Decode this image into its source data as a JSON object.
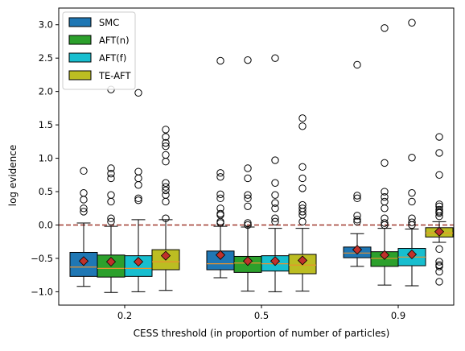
{
  "chart_data": {
    "type": "box",
    "xlabel": "CESS threshold (in proportion of number of particles)",
    "ylabel": "log evidence",
    "categories": [
      "0.2",
      "0.5",
      "0.9"
    ],
    "ylim": [
      -1.2,
      3.25
    ],
    "yticks": [
      "−1.0",
      "−0.5",
      "0.0",
      "0.5",
      "1.0",
      "1.5",
      "2.0",
      "2.5",
      "3.0"
    ],
    "ytick_values": [
      -1.0,
      -0.5,
      0.0,
      0.5,
      1.0,
      1.5,
      2.0,
      2.5,
      3.0
    ],
    "reference_line": {
      "y": 0.0,
      "style": "dashed",
      "color": "#a0392f"
    },
    "legend": {
      "position": "top-left"
    },
    "mean_marker": {
      "shape": "diamond",
      "color": "#c0312b"
    },
    "median_color": "#e8922e",
    "series": [
      {
        "name": "SMC",
        "color": "#1f77b4",
        "boxes": [
          {
            "q1": -0.77,
            "median": -0.63,
            "q3": -0.41,
            "whisker_low": -0.92,
            "whisker_high": 0.03,
            "mean": -0.54,
            "outliers": [
              0.2,
              0.25,
              0.38,
              0.48,
              0.81
            ]
          },
          {
            "q1": -0.67,
            "median": -0.58,
            "q3": -0.39,
            "whisker_low": -0.79,
            "whisker_high": -0.02,
            "mean": -0.45,
            "outliers": [
              0.03,
              0.05,
              0.15,
              0.17,
              0.25,
              0.4,
              0.46,
              0.72,
              0.78,
              2.46
            ]
          },
          {
            "q1": -0.49,
            "median": -0.42,
            "q3": -0.33,
            "whisker_low": -0.62,
            "whisker_high": -0.13,
            "mean": -0.37,
            "outliers": [
              0.05,
              0.08,
              0.14,
              0.4,
              0.44,
              2.4
            ]
          }
        ]
      },
      {
        "name": "AFT(n)",
        "color": "#2ca02c",
        "boxes": [
          {
            "q1": -0.78,
            "median": -0.65,
            "q3": -0.45,
            "whisker_low": -1.01,
            "whisker_high": -0.02,
            "mean": -0.55,
            "outliers": [
              0.05,
              0.1,
              0.35,
              0.45,
              0.7,
              0.77,
              0.85,
              2.03
            ]
          },
          {
            "q1": -0.71,
            "median": -0.57,
            "q3": -0.47,
            "whisker_low": -0.99,
            "whisker_high": -0.03,
            "mean": -0.54,
            "outliers": [
              0.0,
              0.03,
              0.28,
              0.4,
              0.45,
              0.7,
              0.85,
              2.47
            ]
          },
          {
            "q1": -0.62,
            "median": -0.5,
            "q3": -0.4,
            "whisker_low": -0.9,
            "whisker_high": -0.05,
            "mean": -0.45,
            "outliers": [
              0.0,
              0.03,
              0.1,
              0.25,
              0.35,
              0.42,
              0.5,
              0.93,
              2.95
            ]
          }
        ]
      },
      {
        "name": "AFT(f)",
        "color": "#17becf",
        "boxes": [
          {
            "q1": -0.77,
            "median": -0.65,
            "q3": -0.46,
            "whisker_low": -1.0,
            "whisker_high": 0.08,
            "mean": -0.55,
            "outliers": [
              0.37,
              0.4,
              0.6,
              0.7,
              0.8,
              1.98
            ]
          },
          {
            "q1": -0.69,
            "median": -0.58,
            "q3": -0.46,
            "whisker_low": -1.0,
            "whisker_high": -0.05,
            "mean": -0.54,
            "outliers": [
              0.05,
              0.1,
              0.25,
              0.33,
              0.45,
              0.63,
              0.97,
              2.5
            ]
          },
          {
            "q1": -0.61,
            "median": -0.48,
            "q3": -0.35,
            "whisker_low": -0.91,
            "whisker_high": -0.06,
            "mean": -0.44,
            "outliers": [
              0.0,
              0.04,
              0.1,
              0.35,
              0.48,
              1.01,
              3.03
            ]
          }
        ]
      },
      {
        "name": "TE-AFT",
        "color": "#bcbd22",
        "boxes": [
          {
            "q1": -0.67,
            "median": -0.55,
            "q3": -0.37,
            "whisker_low": -0.98,
            "whisker_high": 0.08,
            "mean": -0.46,
            "outliers": [
              0.1,
              0.35,
              0.45,
              0.52,
              0.57,
              0.63,
              0.95,
              1.05,
              1.18,
              1.23,
              1.32,
              1.43
            ]
          },
          {
            "q1": -0.73,
            "median": -0.6,
            "q3": -0.44,
            "whisker_low": -0.99,
            "whisker_high": -0.05,
            "mean": -0.53,
            "outliers": [
              0.05,
              0.15,
              0.2,
              0.25,
              0.3,
              0.55,
              0.7,
              0.87,
              1.48,
              1.6
            ]
          },
          {
            "q1": -0.18,
            "median": -0.12,
            "q3": -0.04,
            "whisker_low": -0.26,
            "whisker_high": 0.05,
            "mean": -0.1,
            "outliers": [
              -0.36,
              -0.55,
              -0.6,
              -0.62,
              -0.7,
              -0.85,
              0.13,
              0.18,
              0.2,
              0.23,
              0.28,
              0.31,
              0.75,
              1.08,
              1.32
            ]
          }
        ]
      }
    ]
  }
}
